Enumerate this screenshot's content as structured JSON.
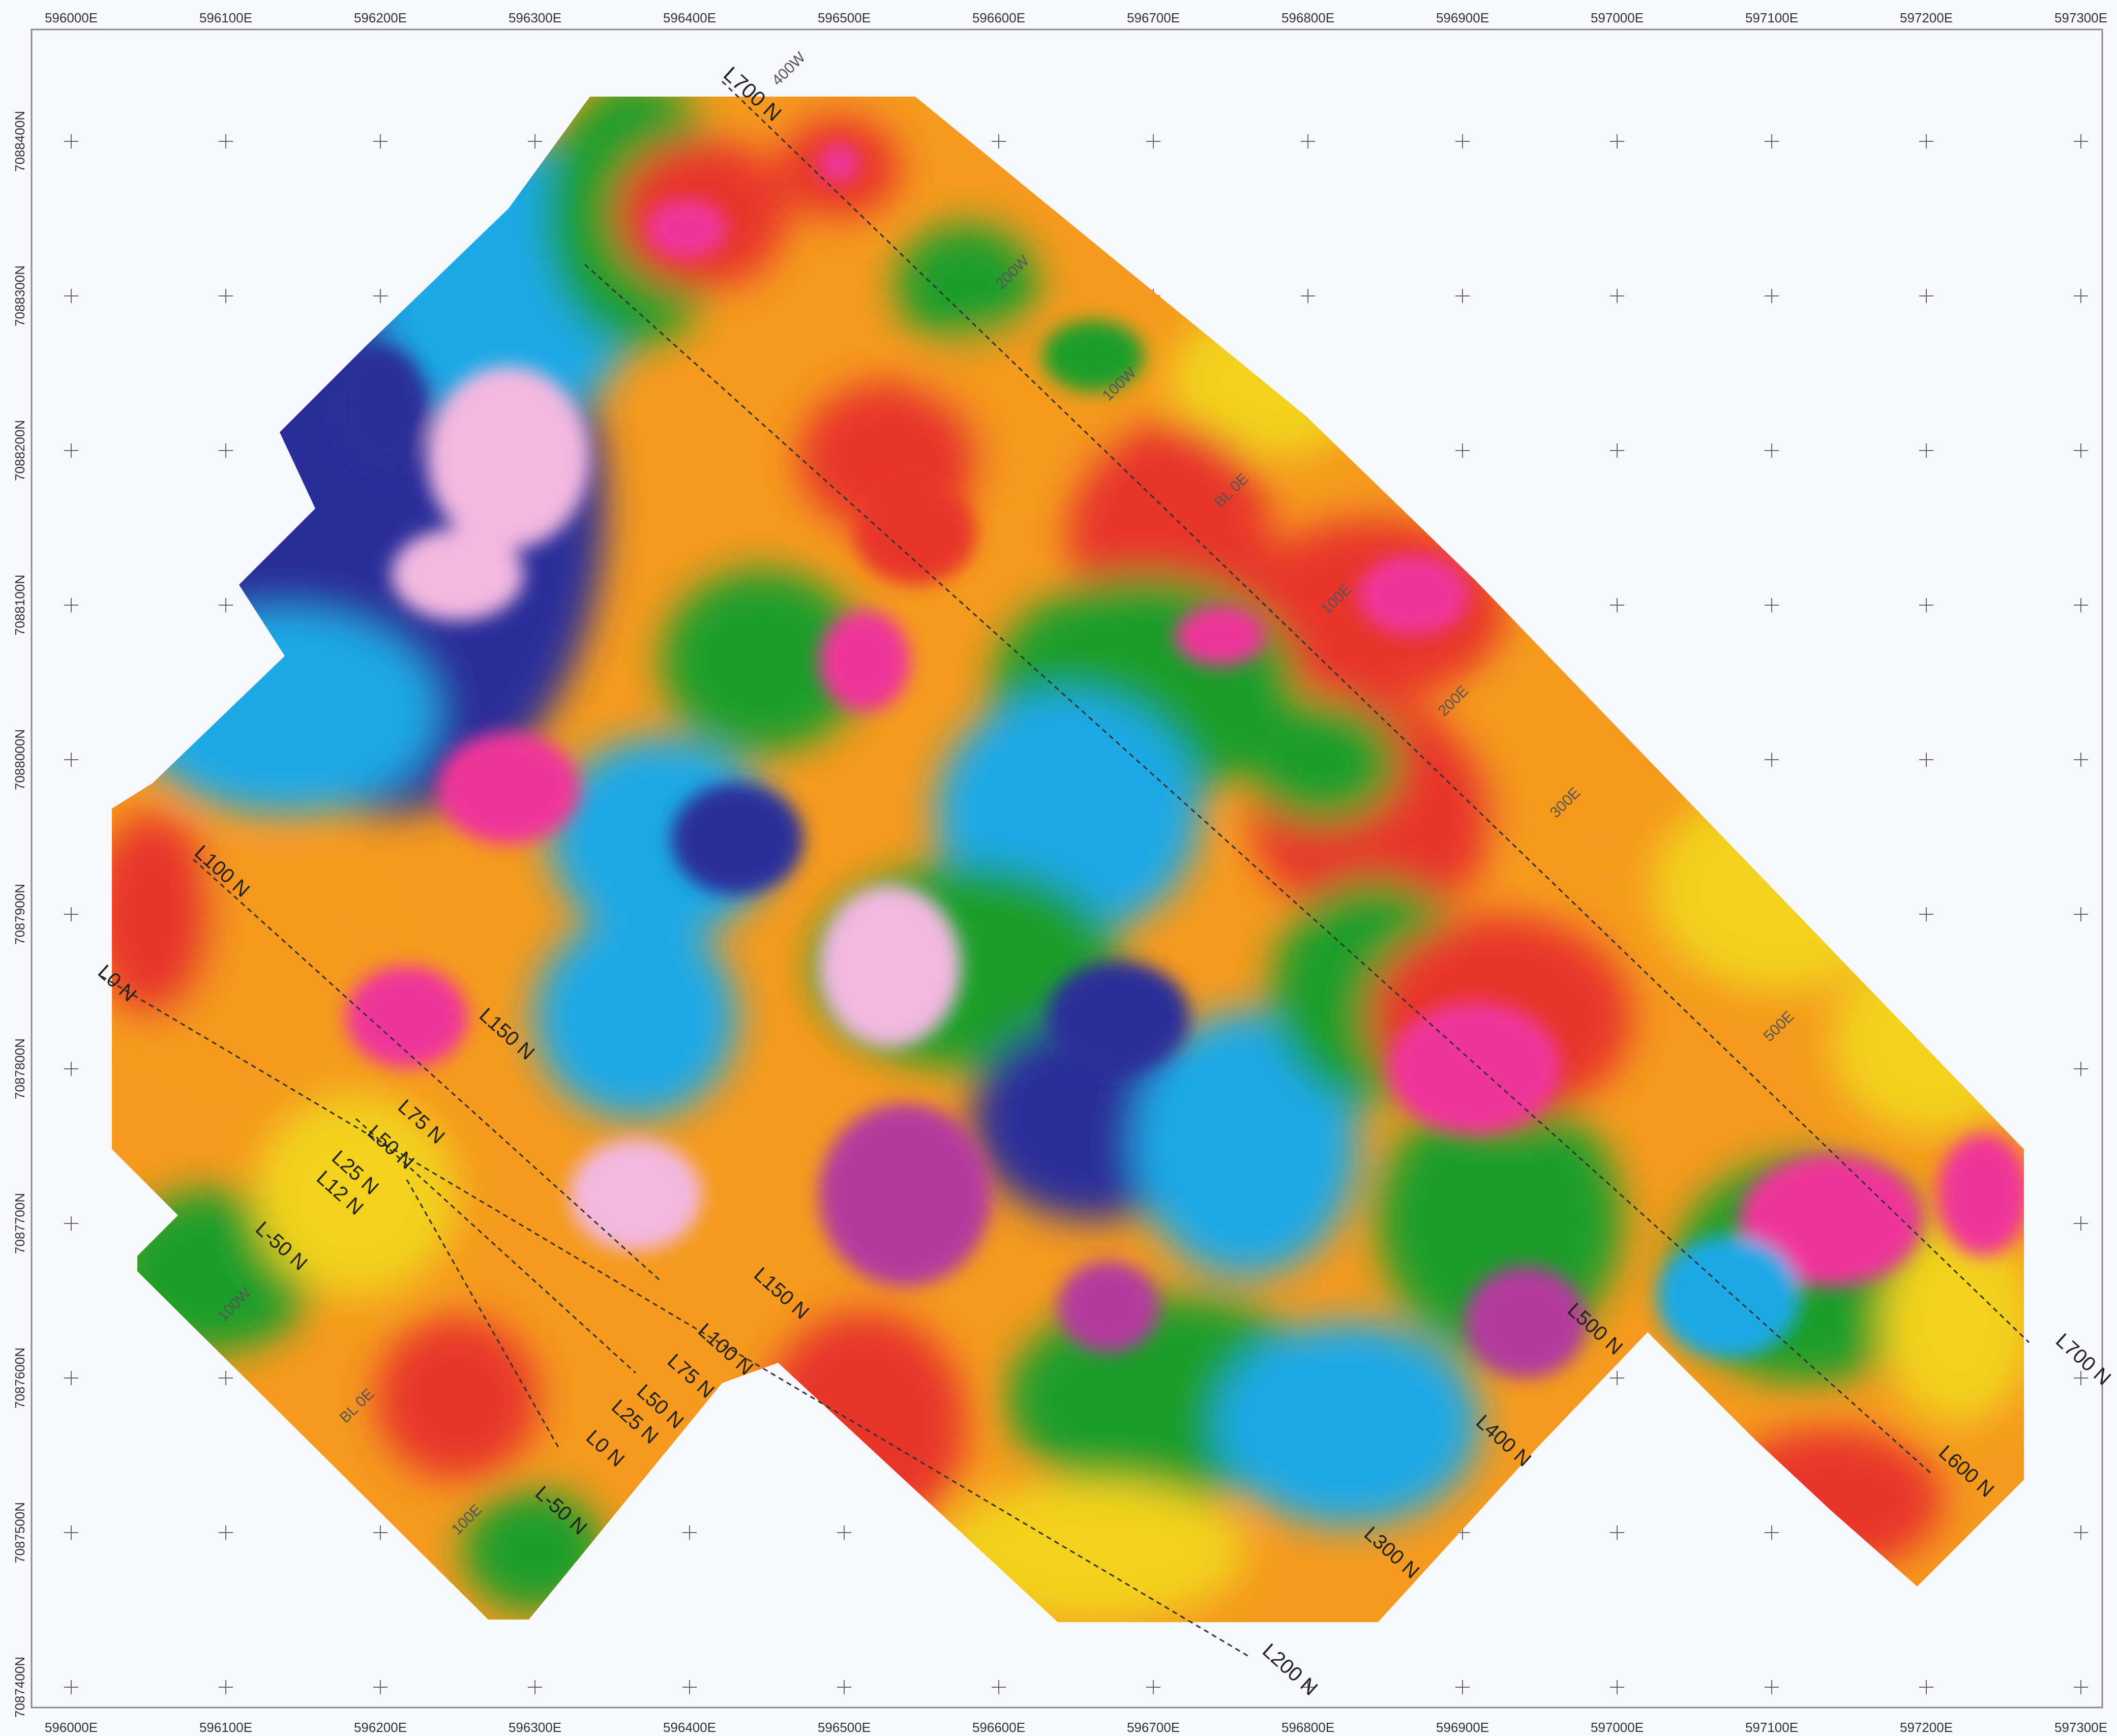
{
  "map": {
    "eastings": [
      "596000E",
      "596100E",
      "596200E",
      "596300E",
      "596400E",
      "596500E",
      "596600E",
      "596700E",
      "596800E",
      "596900E",
      "597000E",
      "597100E",
      "597200E",
      "597300E"
    ],
    "northings": [
      "7088400N",
      "7088300N",
      "7088200N",
      "7088100N",
      "7088000N",
      "7087900N",
      "7087800N",
      "7087700N",
      "7087600N",
      "7087500N",
      "7087400N"
    ],
    "grid_lines": [
      {
        "label": "L700 N",
        "end_label": "L700 N"
      },
      {
        "label": "L0 N",
        "end_label": "L200 N"
      }
    ],
    "line_labels": [
      "L700 N",
      "L100 N",
      "L0 N",
      "L150 N",
      "L75 N",
      "L50 N",
      "L25 N",
      "L12 N",
      "L-50 N",
      "L150 N",
      "L100 N",
      "L75 N",
      "L50 N",
      "L25 N",
      "L0 N",
      "L-50 N",
      "L200 N",
      "L300 N",
      "L400 N",
      "L500 N",
      "L600 N",
      "L700 N"
    ],
    "station_labels": [
      "400W",
      "200W",
      "100W",
      "BL 0E",
      "100E",
      "200E",
      "300E",
      "500E",
      "100W",
      "BL 0E",
      "100E"
    ],
    "colors": {
      "background": "#f7f8fc",
      "palette": [
        "#2a2f9a",
        "#1fa9e6",
        "#1e9e2a",
        "#f2d21e",
        "#f59a1e",
        "#e8342a",
        "#f0369a",
        "#f3b8e0"
      ]
    }
  }
}
